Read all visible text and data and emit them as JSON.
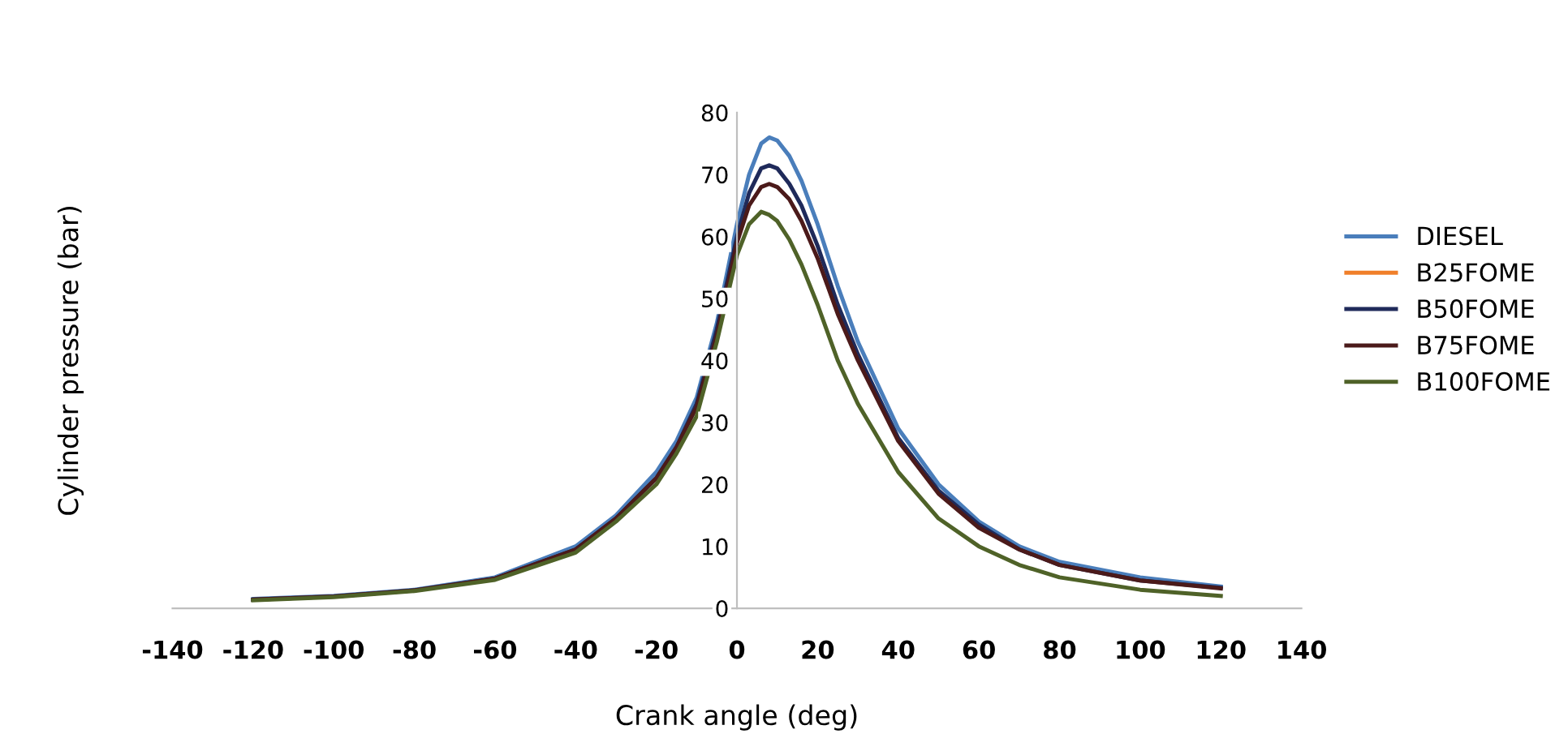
{
  "chart_data": {
    "type": "line",
    "xlabel": "Crank angle (deg)",
    "ylabel": "Cylinder pressure (bar)",
    "x": [
      -120,
      -100,
      -80,
      -60,
      -40,
      -30,
      -20,
      -15,
      -10,
      -5,
      0,
      3,
      6,
      8,
      10,
      13,
      16,
      20,
      25,
      30,
      40,
      50,
      60,
      70,
      80,
      100,
      120
    ],
    "xlim": [
      -140,
      140
    ],
    "xticks": [
      -140,
      -120,
      -100,
      -80,
      -60,
      -40,
      -20,
      0,
      20,
      40,
      60,
      80,
      100,
      120,
      140
    ],
    "ylim": [
      0,
      80
    ],
    "yticks": [
      0,
      10,
      20,
      30,
      40,
      50,
      60,
      70,
      80
    ],
    "grid": false,
    "legend": "right",
    "marker": "none",
    "line_style": "solid",
    "series": [
      {
        "name": "DIESEL",
        "color": "#4a7ebb",
        "values": [
          1.5,
          2,
          3,
          5,
          10,
          15,
          22,
          27,
          34,
          46,
          62,
          70,
          75,
          76,
          75.5,
          73,
          69,
          62,
          52,
          43,
          29,
          20,
          14,
          10,
          7.5,
          5,
          3.5
        ]
      },
      {
        "name": "B25FOME",
        "color": "#f07f2a",
        "values": [
          null,
          null,
          null,
          null,
          null,
          null,
          null,
          null,
          null,
          null,
          null,
          null,
          null,
          null,
          null,
          null,
          null,
          null,
          null,
          null,
          null,
          null,
          null,
          null,
          null,
          null,
          null
        ]
      },
      {
        "name": "B50FOME",
        "color": "#1f2a5a",
        "values": [
          1.4,
          1.9,
          2.9,
          4.8,
          9.5,
          14.5,
          21,
          26,
          33,
          45,
          60,
          67,
          71,
          71.5,
          71,
          68.5,
          65,
          58.5,
          49,
          41,
          27.5,
          19,
          13.5,
          9.5,
          7,
          4.5,
          3.3
        ]
      },
      {
        "name": "B75FOME",
        "color": "#4b1a1a",
        "values": [
          1.4,
          1.9,
          2.9,
          4.8,
          9.5,
          14.5,
          21,
          26,
          32.5,
          44,
          59,
          65,
          68,
          68.5,
          68,
          66,
          62.5,
          56.5,
          47.5,
          40,
          27,
          18.5,
          13,
          9.5,
          7,
          4.5,
          3.2
        ]
      },
      {
        "name": "B100FOME",
        "color": "#4f6228",
        "values": [
          1.3,
          1.8,
          2.8,
          4.6,
          9,
          14,
          20,
          25,
          31,
          43,
          57,
          62,
          64,
          63.5,
          62.5,
          59.5,
          55.5,
          49,
          40,
          33,
          22,
          14.5,
          10,
          7,
          5,
          3,
          2
        ]
      }
    ]
  }
}
